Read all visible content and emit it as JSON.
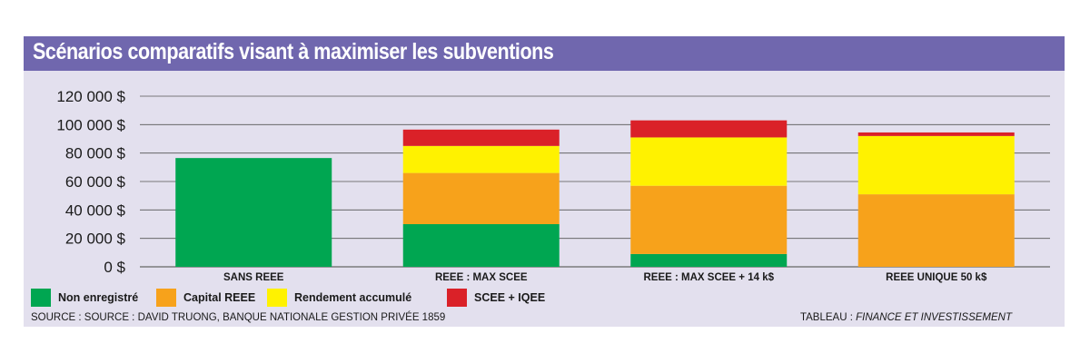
{
  "chart_data": {
    "type": "bar",
    "stacked": true,
    "title": "Scénarios comparatifs visant à maximiser les subventions",
    "categories": [
      "SANS REEE",
      "REEE : MAX SCEE",
      "REEE : MAX SCEE + 14 k$",
      "REEE UNIQUE 50 k$"
    ],
    "series": [
      {
        "name": "Non enregistré",
        "color": "#00a651",
        "values": [
          76500,
          30000,
          9000,
          0
        ]
      },
      {
        "name": "Capital REEE",
        "color": "#f7a21b",
        "values": [
          0,
          36000,
          48000,
          51000
        ]
      },
      {
        "name": "Rendement accumulé",
        "color": "#fff200",
        "values": [
          0,
          19000,
          34000,
          41000
        ]
      },
      {
        "name": "SCEE + IQEE",
        "color": "#da2128",
        "values": [
          0,
          11500,
          12000,
          2500
        ]
      }
    ],
    "y_ticks": [
      "0 $",
      "20 000 $",
      "40 000 $",
      "60 000 $",
      "80 000 $",
      "100 000 $",
      "120 000 $"
    ],
    "ylim": [
      0,
      120000
    ],
    "grid": true,
    "legend_position": "bottom-left"
  },
  "footer": {
    "source": "SOURCE : SOURCE : DAVID TRUONG, BANQUE NATIONALE GESTION PRIVÉE 1859",
    "credit_prefix": "TABLEAU : ",
    "credit_name": "FINANCE ET INVESTISSEMENT"
  }
}
